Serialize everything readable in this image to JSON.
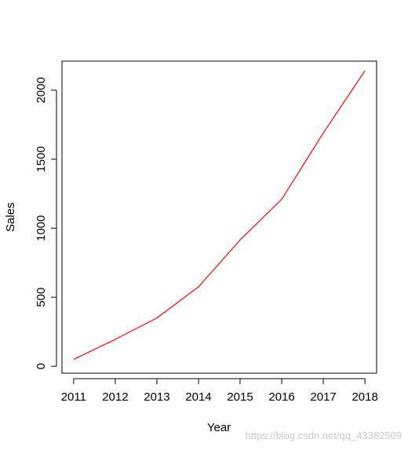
{
  "chart_data": {
    "type": "line",
    "title": "",
    "xlabel": "Year",
    "ylabel": "Sales",
    "x": [
      2011,
      2012,
      2013,
      2014,
      2015,
      2016,
      2017,
      2018
    ],
    "series": [
      {
        "values": [
          50,
          195,
          350,
          575,
          915,
          1210,
          1690,
          2140
        ],
        "color": "#ff0000"
      }
    ],
    "xlim": [
      2010.72,
      2018.28
    ],
    "ylim": [
      -50,
      2210
    ],
    "xticks": [
      "2011",
      "2012",
      "2013",
      "2014",
      "2015",
      "2016",
      "2017",
      "2018"
    ],
    "yticks": [
      "0",
      "500",
      "1000",
      "1500",
      "2000"
    ],
    "grid": false,
    "legend": "none"
  },
  "watermark": "https://blog.csdn.net/qq_43382509"
}
